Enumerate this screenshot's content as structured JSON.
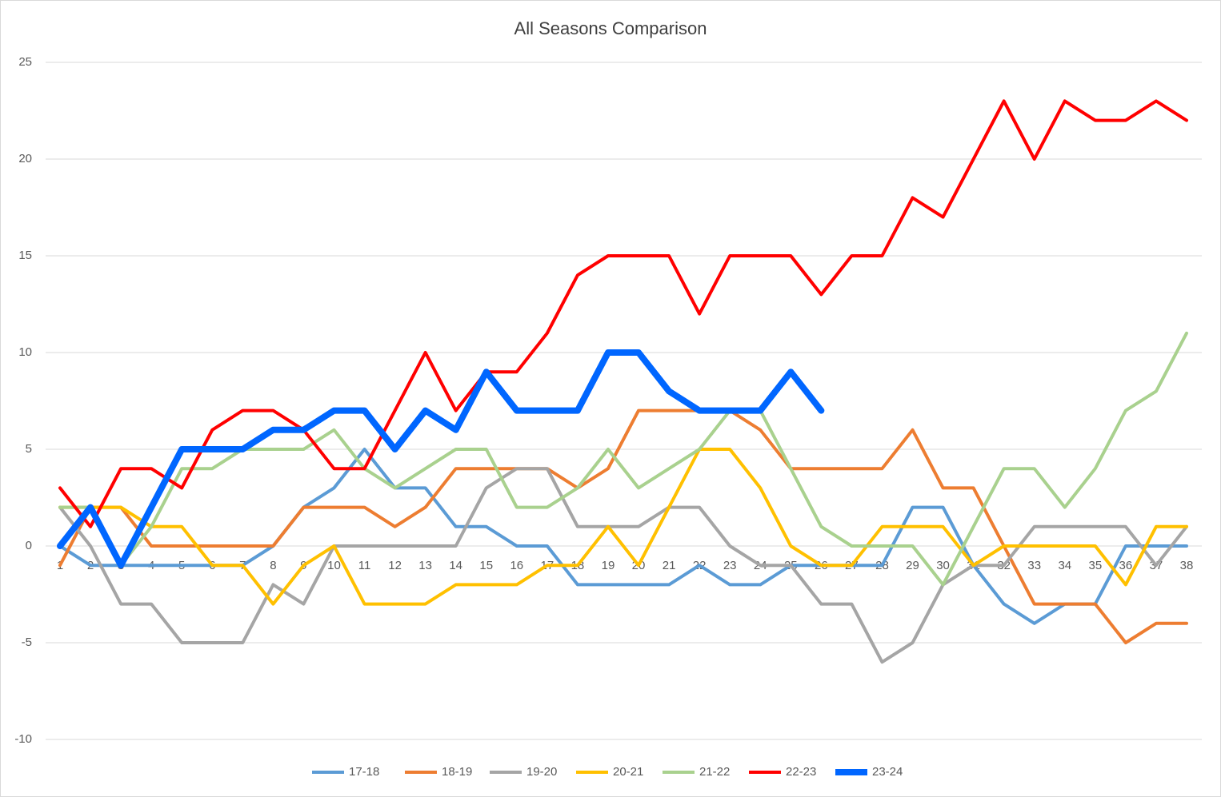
{
  "chart_data": {
    "type": "line",
    "title": "All Seasons Comparison",
    "categories": [
      "1",
      "2",
      "3",
      "4",
      "5",
      "6",
      "7",
      "8",
      "9",
      "10",
      "11",
      "12",
      "13",
      "14",
      "15",
      "16",
      "17",
      "18",
      "19",
      "20",
      "21",
      "22",
      "23",
      "24",
      "25",
      "26",
      "27",
      "28",
      "29",
      "30",
      "31",
      "32",
      "33",
      "34",
      "35",
      "36",
      "37",
      "38"
    ],
    "ylim": [
      -10,
      25
    ],
    "yticks": [
      -10,
      -5,
      0,
      5,
      10,
      15,
      20,
      25
    ],
    "grid": true,
    "legend": "bottom",
    "series": [
      {
        "name": "17-18",
        "color": "#5b9bd5",
        "values": [
          0,
          -1,
          -1,
          -1,
          -1,
          -1,
          -1,
          0,
          2,
          3,
          5,
          3,
          3,
          1,
          1,
          0,
          0,
          -2,
          -2,
          -2,
          -2,
          -1,
          -2,
          -2,
          -1,
          -1,
          -1,
          -1,
          2,
          2,
          -1,
          -3,
          -4,
          -3,
          -3,
          0,
          0,
          0
        ]
      },
      {
        "name": "18-19",
        "color": "#ed7d31",
        "values": [
          -1,
          2,
          2,
          0,
          0,
          0,
          0,
          0,
          2,
          2,
          2,
          1,
          2,
          4,
          4,
          4,
          4,
          3,
          4,
          7,
          7,
          7,
          7,
          6,
          4,
          4,
          4,
          4,
          6,
          3,
          3,
          0,
          -3,
          -3,
          -3,
          -5,
          -4,
          -4
        ]
      },
      {
        "name": "19-20",
        "color": "#a5a5a5",
        "values": [
          2,
          0,
          -3,
          -3,
          -5,
          -5,
          -5,
          -2,
          -3,
          0,
          0,
          0,
          0,
          0,
          3,
          4,
          4,
          1,
          1,
          1,
          2,
          2,
          0,
          -1,
          -1,
          -3,
          -3,
          -6,
          -5,
          -2,
          -1,
          -1,
          1,
          1,
          1,
          1,
          -1,
          1
        ]
      },
      {
        "name": "20-21",
        "color": "#ffc000",
        "values": [
          2,
          2,
          2,
          1,
          1,
          -1,
          -1,
          -3,
          -1,
          0,
          -3,
          -3,
          -3,
          -2,
          -2,
          -2,
          -1,
          -1,
          1,
          -1,
          2,
          5,
          5,
          3,
          0,
          -1,
          -1,
          1,
          1,
          1,
          -1,
          0,
          0,
          0,
          0,
          -2,
          1,
          1
        ]
      },
      {
        "name": "21-22",
        "color": "#a9d18e",
        "values": [
          2,
          2,
          -1,
          1,
          4,
          4,
          5,
          5,
          5,
          6,
          4,
          3,
          4,
          5,
          5,
          2,
          2,
          3,
          5,
          3,
          4,
          5,
          7,
          7,
          4,
          1,
          0,
          0,
          0,
          -2,
          1,
          4,
          4,
          2,
          4,
          7,
          8,
          11
        ]
      },
      {
        "name": "22-23",
        "color": "#ff0000",
        "values": [
          3,
          1,
          4,
          4,
          3,
          6,
          7,
          7,
          6,
          4,
          4,
          7,
          10,
          7,
          9,
          9,
          11,
          14,
          15,
          15,
          15,
          12,
          15,
          15,
          15,
          13,
          15,
          15,
          18,
          17,
          20,
          23,
          20,
          23,
          22,
          22,
          23,
          22
        ]
      },
      {
        "name": "23-24",
        "color": "#0066ff",
        "values": [
          0,
          2,
          -1,
          2,
          5,
          5,
          5,
          6,
          6,
          7,
          7,
          5,
          7,
          6,
          9,
          7,
          7,
          7,
          10,
          10,
          8,
          7,
          7,
          7,
          9,
          7,
          null,
          null,
          null,
          null,
          null,
          null,
          null,
          null,
          null,
          null,
          null,
          null
        ]
      }
    ]
  }
}
